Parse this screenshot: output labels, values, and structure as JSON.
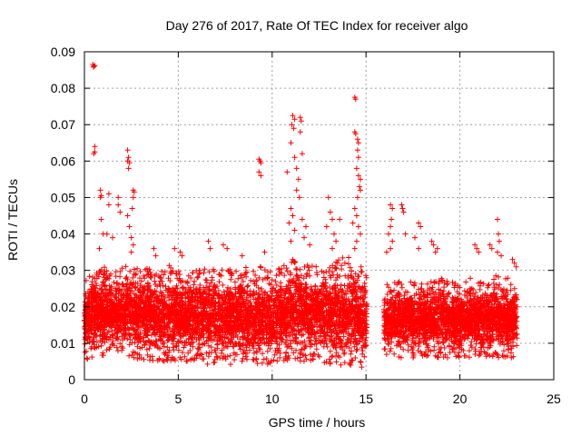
{
  "chart_data": {
    "type": "scatter",
    "title": "Day 276 of 2017, Rate Of TEC Index for receiver algo",
    "xlabel": "GPS time / hours",
    "ylabel": "ROTI / TECUs",
    "xlim": [
      0,
      25
    ],
    "ylim": [
      0,
      0.09
    ],
    "xticks": [
      0,
      5,
      10,
      15,
      20,
      25
    ],
    "yticks": [
      0,
      0.01,
      0.02,
      0.03,
      0.04,
      0.05,
      0.06,
      0.07,
      0.08,
      0.09
    ],
    "xtick_labels": [
      "0",
      "5",
      "10",
      "15",
      "20",
      "25"
    ],
    "ytick_labels": [
      "0",
      "0.01",
      "0.02",
      "0.03",
      "0.04",
      "0.05",
      "0.06",
      "0.07",
      "0.08",
      "0.09"
    ],
    "grid": true,
    "marker": "+",
    "color": "#ff0000",
    "data_gap_hours": [
      15.05,
      15.95
    ],
    "series": [
      {
        "points": [
          [
            0.45,
            0.0865
          ],
          [
            0.5,
            0.086
          ],
          [
            0.55,
            0.0862
          ],
          [
            0.48,
            0.0858
          ],
          [
            0.55,
            0.064
          ],
          [
            0.55,
            0.0625
          ],
          [
            0.5,
            0.062
          ],
          [
            0.85,
            0.052
          ],
          [
            0.85,
            0.05
          ],
          [
            0.9,
            0.0505
          ],
          [
            1.3,
            0.051
          ],
          [
            1.3,
            0.048
          ],
          [
            0.9,
            0.044
          ],
          [
            1.0,
            0.04
          ],
          [
            1.8,
            0.05
          ],
          [
            1.8,
            0.048
          ],
          [
            1.9,
            0.046
          ],
          [
            2.3,
            0.063
          ],
          [
            2.35,
            0.061
          ],
          [
            2.3,
            0.06
          ],
          [
            2.4,
            0.0595
          ],
          [
            2.35,
            0.058
          ],
          [
            2.6,
            0.052
          ],
          [
            2.65,
            0.0515
          ],
          [
            2.6,
            0.05
          ],
          [
            2.55,
            0.047
          ],
          [
            2.3,
            0.045
          ],
          [
            2.4,
            0.042
          ],
          [
            2.5,
            0.039
          ],
          [
            2.6,
            0.037
          ],
          [
            2.5,
            0.035
          ],
          [
            1.5,
            0.039
          ],
          [
            1.2,
            0.04
          ],
          [
            0.8,
            0.036
          ],
          [
            3.7,
            0.036
          ],
          [
            3.8,
            0.034
          ],
          [
            4.8,
            0.036
          ],
          [
            5.2,
            0.034
          ],
          [
            5.1,
            0.035
          ],
          [
            6.6,
            0.038
          ],
          [
            6.7,
            0.036
          ],
          [
            7.4,
            0.037
          ],
          [
            7.6,
            0.036
          ],
          [
            8.4,
            0.034
          ],
          [
            9.3,
            0.0605
          ],
          [
            9.35,
            0.06
          ],
          [
            9.4,
            0.0595
          ],
          [
            9.3,
            0.057
          ],
          [
            9.4,
            0.056
          ],
          [
            9.6,
            0.035
          ],
          [
            10.8,
            0.057
          ],
          [
            11.0,
            0.065
          ],
          [
            11.05,
            0.07
          ],
          [
            11.1,
            0.0725
          ],
          [
            11.2,
            0.0715
          ],
          [
            11.15,
            0.069
          ],
          [
            11.5,
            0.072
          ],
          [
            11.55,
            0.071
          ],
          [
            11.5,
            0.068
          ],
          [
            11.6,
            0.062
          ],
          [
            11.2,
            0.061
          ],
          [
            11.3,
            0.058
          ],
          [
            11.4,
            0.055
          ],
          [
            11.3,
            0.052
          ],
          [
            11.45,
            0.05
          ],
          [
            11.0,
            0.047
          ],
          [
            11.1,
            0.045
          ],
          [
            10.9,
            0.043
          ],
          [
            11.2,
            0.041
          ],
          [
            11.6,
            0.044
          ],
          [
            11.8,
            0.042
          ],
          [
            11.7,
            0.039
          ],
          [
            12.0,
            0.037
          ],
          [
            11.0,
            0.038
          ],
          [
            13.0,
            0.05
          ],
          [
            13.1,
            0.046
          ],
          [
            13.2,
            0.044
          ],
          [
            12.9,
            0.042
          ],
          [
            13.3,
            0.04
          ],
          [
            13.6,
            0.044
          ],
          [
            13.4,
            0.038
          ],
          [
            13.2,
            0.036
          ],
          [
            14.4,
            0.0775
          ],
          [
            14.45,
            0.077
          ],
          [
            14.4,
            0.068
          ],
          [
            14.45,
            0.0675
          ],
          [
            14.55,
            0.066
          ],
          [
            14.6,
            0.065
          ],
          [
            14.55,
            0.063
          ],
          [
            14.6,
            0.061
          ],
          [
            14.5,
            0.058
          ],
          [
            14.6,
            0.056
          ],
          [
            14.7,
            0.055
          ],
          [
            14.65,
            0.053
          ],
          [
            14.7,
            0.052
          ],
          [
            14.55,
            0.05
          ],
          [
            14.4,
            0.047
          ],
          [
            14.5,
            0.045
          ],
          [
            14.3,
            0.043
          ],
          [
            14.6,
            0.042
          ],
          [
            14.7,
            0.04
          ],
          [
            14.5,
            0.038
          ],
          [
            14.4,
            0.036
          ],
          [
            16.3,
            0.048
          ],
          [
            16.4,
            0.047
          ],
          [
            16.35,
            0.044
          ],
          [
            16.3,
            0.042
          ],
          [
            16.2,
            0.04
          ],
          [
            16.4,
            0.038
          ],
          [
            16.3,
            0.036
          ],
          [
            16.9,
            0.048
          ],
          [
            16.95,
            0.047
          ],
          [
            17.0,
            0.046
          ],
          [
            17.1,
            0.04
          ],
          [
            17.8,
            0.043
          ],
          [
            17.9,
            0.042
          ],
          [
            17.6,
            0.039
          ],
          [
            17.8,
            0.036
          ],
          [
            18.5,
            0.038
          ],
          [
            18.6,
            0.037
          ],
          [
            18.8,
            0.036
          ],
          [
            18.7,
            0.035
          ],
          [
            16.1,
            0.035
          ],
          [
            20.8,
            0.037
          ],
          [
            20.9,
            0.036
          ],
          [
            21.0,
            0.035
          ],
          [
            21.6,
            0.037
          ],
          [
            21.7,
            0.036
          ],
          [
            22.0,
            0.044
          ],
          [
            22.05,
            0.04
          ],
          [
            22.1,
            0.038
          ],
          [
            22.0,
            0.035
          ],
          [
            22.2,
            0.034
          ],
          [
            22.8,
            0.033
          ],
          [
            22.9,
            0.032
          ],
          [
            23.0,
            0.031
          ]
        ]
      }
    ],
    "band_profile": [
      [
        0.0,
        0.005,
        0.027
      ],
      [
        0.5,
        0.006,
        0.03
      ],
      [
        1.0,
        0.006,
        0.031
      ],
      [
        1.5,
        0.007,
        0.03
      ],
      [
        2.0,
        0.006,
        0.031
      ],
      [
        2.5,
        0.006,
        0.032
      ],
      [
        3.0,
        0.005,
        0.03
      ],
      [
        3.5,
        0.005,
        0.031
      ],
      [
        4.0,
        0.005,
        0.029
      ],
      [
        4.5,
        0.005,
        0.032
      ],
      [
        5.0,
        0.005,
        0.03
      ],
      [
        5.5,
        0.005,
        0.029
      ],
      [
        6.0,
        0.005,
        0.03
      ],
      [
        6.5,
        0.004,
        0.031
      ],
      [
        7.0,
        0.004,
        0.03
      ],
      [
        7.5,
        0.004,
        0.031
      ],
      [
        8.0,
        0.004,
        0.03
      ],
      [
        8.5,
        0.005,
        0.031
      ],
      [
        9.0,
        0.004,
        0.032
      ],
      [
        9.5,
        0.004,
        0.031
      ],
      [
        10.0,
        0.004,
        0.03
      ],
      [
        10.5,
        0.005,
        0.031
      ],
      [
        11.0,
        0.005,
        0.033
      ],
      [
        11.5,
        0.005,
        0.033
      ],
      [
        12.0,
        0.005,
        0.032
      ],
      [
        12.5,
        0.005,
        0.031
      ],
      [
        13.0,
        0.004,
        0.032
      ],
      [
        13.5,
        0.004,
        0.033
      ],
      [
        14.0,
        0.004,
        0.034
      ],
      [
        14.5,
        0.003,
        0.033
      ],
      [
        15.0,
        0.003,
        0.03
      ],
      [
        16.0,
        0.006,
        0.026
      ],
      [
        16.5,
        0.006,
        0.027
      ],
      [
        17.0,
        0.006,
        0.028
      ],
      [
        17.5,
        0.006,
        0.027
      ],
      [
        18.0,
        0.006,
        0.028
      ],
      [
        18.5,
        0.006,
        0.027
      ],
      [
        19.0,
        0.006,
        0.028
      ],
      [
        19.5,
        0.006,
        0.027
      ],
      [
        20.0,
        0.006,
        0.026
      ],
      [
        20.5,
        0.006,
        0.028
      ],
      [
        21.0,
        0.006,
        0.027
      ],
      [
        21.5,
        0.006,
        0.028
      ],
      [
        22.0,
        0.006,
        0.029
      ],
      [
        22.5,
        0.006,
        0.028
      ],
      [
        23.0,
        0.006,
        0.027
      ]
    ]
  }
}
